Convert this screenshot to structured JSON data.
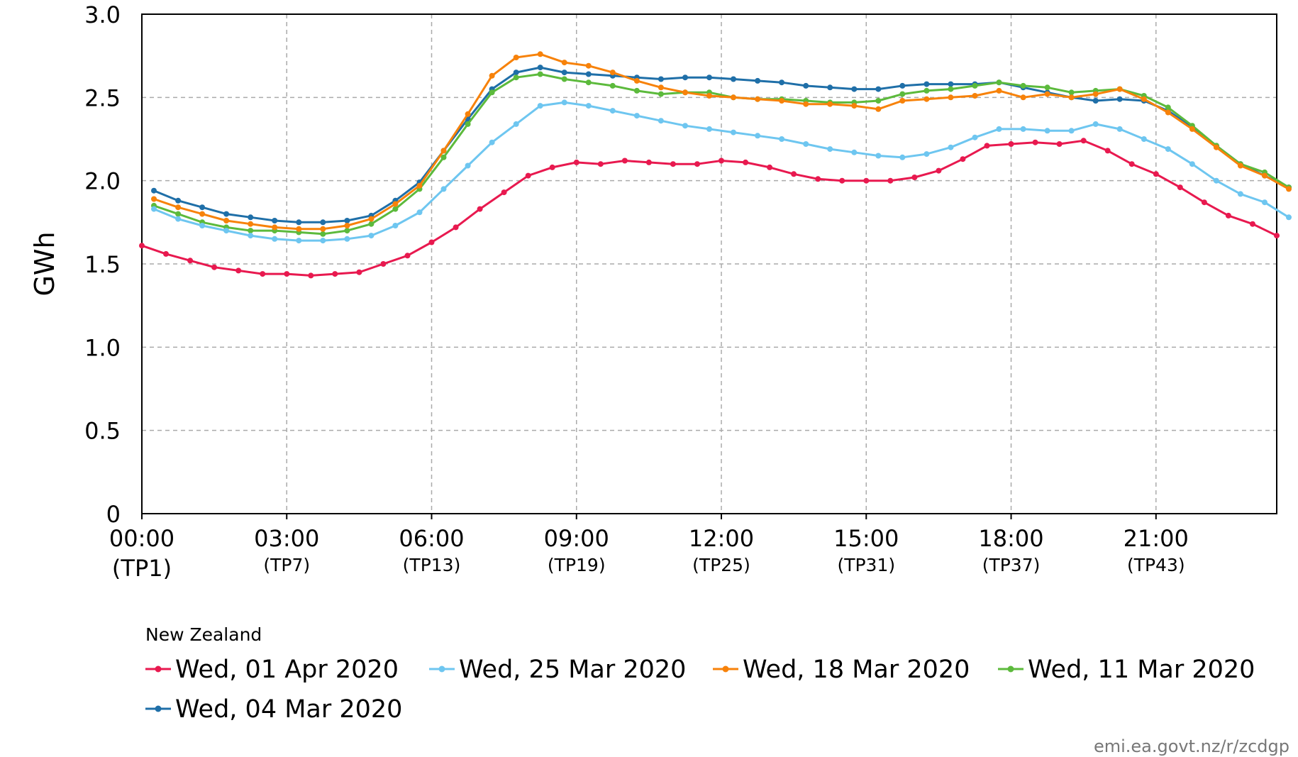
{
  "source_text": "emi.ea.govt.nz/r/zcdgp",
  "chart_data": {
    "type": "line",
    "ylabel": "GWh",
    "ylim": [
      0,
      3.0
    ],
    "yticks": [
      "0",
      "0.5",
      "1.0",
      "1.5",
      "2.0",
      "2.5",
      "3.0"
    ],
    "xlim": [
      1,
      48
    ],
    "xticks": [
      {
        "tp": 1,
        "time": "00:00",
        "label": "(TP1)"
      },
      {
        "tp": 7,
        "time": "03:00",
        "label": "(TP7)"
      },
      {
        "tp": 13,
        "time": "06:00",
        "label": "(TP13)"
      },
      {
        "tp": 19,
        "time": "09:00",
        "label": "(TP19)"
      },
      {
        "tp": 25,
        "time": "12:00",
        "label": "(TP25)"
      },
      {
        "tp": 31,
        "time": "15:00",
        "label": "(TP31)"
      },
      {
        "tp": 37,
        "time": "18:00",
        "label": "(TP37)"
      },
      {
        "tp": 43,
        "time": "21:00",
        "label": "(TP43)"
      }
    ],
    "grid": true,
    "legend_title": "New Zealand",
    "legend_placement": "bottom",
    "series": [
      {
        "name": "Wed, 01 Apr 2020",
        "color": "#e8194f",
        "tp_start": 1,
        "values": [
          1.61,
          1.56,
          1.52,
          1.48,
          1.46,
          1.44,
          1.44,
          1.43,
          1.44,
          1.45,
          1.5,
          1.55,
          1.63,
          1.72,
          1.83,
          1.93,
          2.03,
          2.08,
          2.11,
          2.1,
          2.12,
          2.11,
          2.1,
          2.1,
          2.12,
          2.11,
          2.08,
          2.04,
          2.01,
          2.0,
          2.0,
          2.0,
          2.02,
          2.06,
          2.13,
          2.21,
          2.22,
          2.23,
          2.22,
          2.24,
          2.18,
          2.1,
          2.04,
          1.96,
          1.87,
          1.79,
          1.74,
          1.67
        ]
      },
      {
        "name": "Wed, 25 Mar 2020",
        "color": "#6ec6f0",
        "tp_start": 1.5,
        "values": [
          1.83,
          1.77,
          1.73,
          1.7,
          1.67,
          1.65,
          1.64,
          1.64,
          1.65,
          1.67,
          1.73,
          1.81,
          1.95,
          2.09,
          2.23,
          2.34,
          2.45,
          2.47,
          2.45,
          2.42,
          2.39,
          2.36,
          2.33,
          2.31,
          2.29,
          2.27,
          2.25,
          2.22,
          2.19,
          2.17,
          2.15,
          2.14,
          2.16,
          2.2,
          2.26,
          2.31,
          2.31,
          2.3,
          2.3,
          2.34,
          2.31,
          2.25,
          2.19,
          2.1,
          2.0,
          1.92,
          1.87,
          1.78
        ]
      },
      {
        "name": "Wed, 18 Mar 2020",
        "color": "#f7820a",
        "tp_start": 1.5,
        "values": [
          1.89,
          1.84,
          1.8,
          1.76,
          1.74,
          1.72,
          1.71,
          1.71,
          1.73,
          1.77,
          1.86,
          1.97,
          2.18,
          2.4,
          2.63,
          2.74,
          2.76,
          2.71,
          2.69,
          2.65,
          2.6,
          2.56,
          2.53,
          2.51,
          2.5,
          2.49,
          2.48,
          2.46,
          2.46,
          2.45,
          2.43,
          2.48,
          2.49,
          2.5,
          2.51,
          2.54,
          2.5,
          2.52,
          2.5,
          2.52,
          2.55,
          2.49,
          2.41,
          2.31,
          2.2,
          2.09,
          2.03,
          1.95
        ]
      },
      {
        "name": "Wed, 11 Mar 2020",
        "color": "#5cba3c",
        "tp_start": 1.5,
        "values": [
          1.85,
          1.8,
          1.75,
          1.72,
          1.7,
          1.7,
          1.69,
          1.68,
          1.7,
          1.74,
          1.83,
          1.95,
          2.14,
          2.34,
          2.53,
          2.62,
          2.64,
          2.61,
          2.59,
          2.57,
          2.54,
          2.52,
          2.53,
          2.53,
          2.5,
          2.49,
          2.49,
          2.48,
          2.47,
          2.47,
          2.48,
          2.52,
          2.54,
          2.55,
          2.57,
          2.59,
          2.57,
          2.56,
          2.53,
          2.54,
          2.55,
          2.51,
          2.44,
          2.33,
          2.21,
          2.1,
          2.05,
          1.96
        ]
      },
      {
        "name": "Wed, 04 Mar 2020",
        "color": "#1f6fa8",
        "tp_start": 1.5,
        "values": [
          1.94,
          1.88,
          1.84,
          1.8,
          1.78,
          1.76,
          1.75,
          1.75,
          1.76,
          1.79,
          1.88,
          1.99,
          2.18,
          2.37,
          2.55,
          2.65,
          2.68,
          2.65,
          2.64,
          2.63,
          2.62,
          2.61,
          2.62,
          2.62,
          2.61,
          2.6,
          2.59,
          2.57,
          2.56,
          2.55,
          2.55,
          2.57,
          2.58,
          2.58,
          2.58,
          2.59,
          2.56,
          2.53,
          2.5,
          2.48,
          2.49,
          2.48,
          2.42,
          2.32,
          2.21,
          2.1,
          2.03,
          1.96
        ]
      }
    ]
  }
}
